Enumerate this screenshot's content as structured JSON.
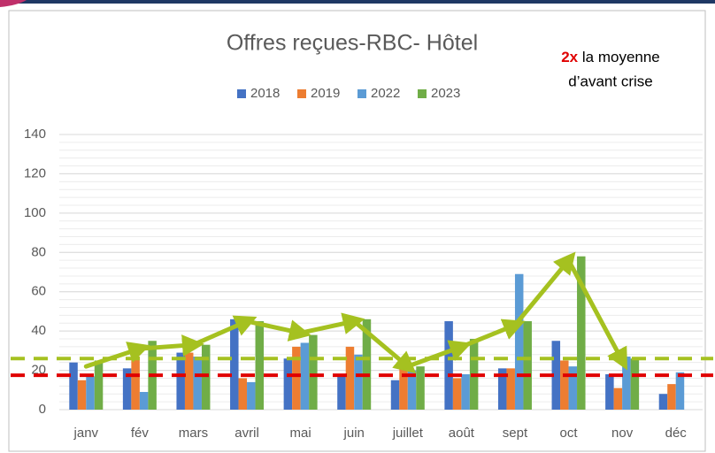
{
  "chart_data": {
    "type": "bar",
    "title": "Offres reçues-RBC- Hôtel",
    "annotation": {
      "highlight": "2x",
      "rest": "la moyenne",
      "line2": "d’avant crise",
      "highlight_color": "#e00000"
    },
    "categories": [
      "janv",
      "fév",
      "mars",
      "avril",
      "mai",
      "juin",
      "juillet",
      "août",
      "sept",
      "oct",
      "nov",
      "déc"
    ],
    "series": [
      {
        "name": "2018",
        "color": "#4472c4",
        "values": [
          24,
          21,
          29,
          46,
          26,
          18,
          15,
          45,
          21,
          35,
          18,
          8
        ]
      },
      {
        "name": "2019",
        "color": "#ed7d31",
        "values": [
          15,
          27,
          29,
          16,
          32,
          32,
          23,
          16,
          21,
          25,
          11,
          13
        ]
      },
      {
        "name": "2022",
        "color": "#5b9bd5",
        "values": [
          17,
          9,
          27,
          14,
          34,
          28,
          20,
          18,
          69,
          22,
          27,
          19
        ]
      },
      {
        "name": "2023",
        "color": "#70ad47",
        "values": [
          25,
          35,
          33,
          45,
          38,
          46,
          22,
          36,
          45,
          78,
          26,
          null
        ]
      }
    ],
    "overlay": {
      "color": "#a5c120",
      "values": [
        22,
        31,
        33,
        45,
        39,
        45,
        22,
        32,
        43,
        76,
        25,
        null
      ]
    },
    "hlines": [
      {
        "value": 26,
        "color": "#a5c120"
      },
      {
        "value": 17.5,
        "color": "#e00000"
      }
    ],
    "ylim": [
      0,
      140
    ],
    "yticks": [
      0,
      20,
      40,
      60,
      80,
      100,
      120,
      140
    ],
    "grid": true,
    "minor_grid": true,
    "legend": "top"
  }
}
